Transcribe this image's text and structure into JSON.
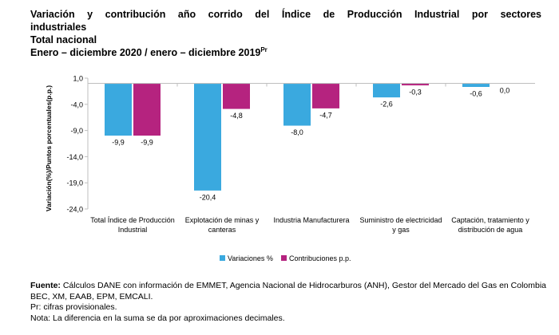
{
  "title": {
    "line1": "Variación y contribución año corrido del Índice de Producción Industrial por sectores",
    "line2": "industriales",
    "line3": "Total nacional",
    "line4": "Enero – diciembre 2020 / enero – diciembre 2019",
    "line4_sup": "Pr"
  },
  "chart_data": {
    "type": "bar",
    "ylabel": "Variación(%)/Puntos porcentuales(p.p.)",
    "ylim": [
      -24.0,
      1.0
    ],
    "yticks": [
      1.0,
      -4.0,
      -9.0,
      -14.0,
      -19.0,
      -24.0
    ],
    "ytick_labels": [
      "1,0",
      "-4,0",
      "-9,0",
      "-14,0",
      "-19,0",
      "-24,0"
    ],
    "categories": [
      [
        "Total Índice de Producción",
        "Industrial"
      ],
      [
        "Explotación de minas y",
        "canteras"
      ],
      [
        "Industria Manufacturera"
      ],
      [
        "Suministro de electricidad",
        "y gas"
      ],
      [
        "Captación, tratamiento y",
        "distribución de agua"
      ]
    ],
    "series": [
      {
        "name": "Variaciones %",
        "color": "#3aa9df",
        "values": [
          -9.9,
          -20.4,
          -8.0,
          -2.6,
          -0.6
        ],
        "labels": [
          "-9,9",
          "-20,4",
          "-8,0",
          "-2,6",
          "-0,6"
        ]
      },
      {
        "name": "Contribuciones p.p.",
        "color": "#b5237f",
        "values": [
          -9.9,
          -4.8,
          -4.7,
          -0.3,
          0.0
        ],
        "labels": [
          "-9,9",
          "-4,8",
          "-4,7",
          "-0,3",
          "0,0"
        ]
      }
    ],
    "legend_position": "bottom"
  },
  "notes": {
    "source_label": "Fuente:",
    "source_text": " Cálculos DANE con información de EMMET, Agencia Nacional de Hidrocarburos (ANH), Gestor del Mercado del Gas en Colombia BEC, XM, EAAB, EPM, EMCALI.",
    "pr": "Pr: cifras provisionales.",
    "nota": "Nota: La diferencia en la suma se da por aproximaciones decimales."
  }
}
